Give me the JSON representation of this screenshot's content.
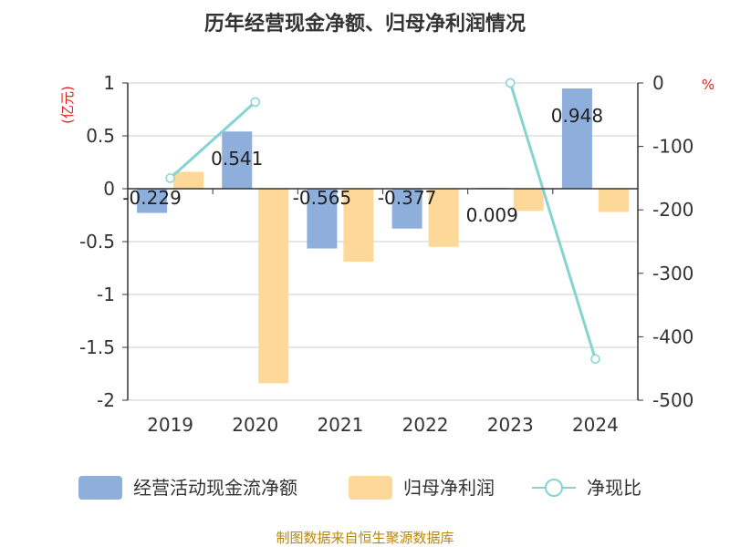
{
  "title": "历年经营现金净额、归母净利润情况",
  "left_unit": "(亿元)",
  "right_unit": "%",
  "source": "制图数据来自恒生聚源数据库",
  "colors": {
    "cash": "#8eaedc",
    "profit": "#fdd899",
    "ratio": "#86d3d3",
    "axis": "#333333",
    "grid": "#cccccc"
  },
  "chart_data": {
    "type": "bar",
    "categories": [
      "2019",
      "2020",
      "2021",
      "2022",
      "2023",
      "2024"
    ],
    "series": [
      {
        "name": "经营活动现金流净额",
        "type": "bar",
        "axis": "left",
        "values": [
          -0.229,
          0.541,
          -0.565,
          -0.377,
          0.009,
          0.948
        ],
        "labels": [
          "-0.229",
          "0.541",
          "-0.565",
          "-0.377",
          "0.009",
          "0.948"
        ]
      },
      {
        "name": "归母净利润",
        "type": "bar",
        "axis": "left",
        "values": [
          0.16,
          -1.84,
          -0.69,
          -0.55,
          -0.21,
          -0.22
        ]
      },
      {
        "name": "净现比",
        "type": "line",
        "axis": "right",
        "values": [
          -150,
          -30,
          null,
          null,
          0,
          -435
        ]
      }
    ],
    "left_axis": {
      "ylim": [
        -2,
        1
      ],
      "ticks": [
        "1",
        "0.5",
        "0",
        "-0.5",
        "-1",
        "-1.5",
        "-2"
      ],
      "tick_values": [
        1,
        0.5,
        0,
        -0.5,
        -1,
        -1.5,
        -2
      ]
    },
    "right_axis": {
      "ylim": [
        -500,
        0
      ],
      "ticks": [
        "0",
        "-100",
        "-200",
        "-300",
        "-400",
        "-500"
      ],
      "tick_values": [
        0,
        -100,
        -200,
        -300,
        -400,
        -500
      ]
    },
    "grid": true,
    "legend_position": "bottom"
  }
}
